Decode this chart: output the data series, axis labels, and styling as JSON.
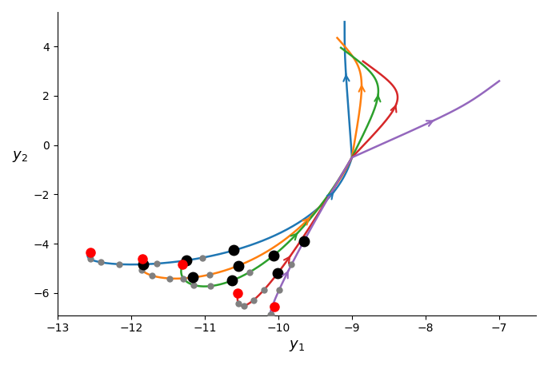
{
  "xlabel": "$y_1$",
  "ylabel": "$y_2$",
  "xlim": [
    -13.0,
    -6.5
  ],
  "ylim": [
    -6.9,
    5.4
  ],
  "curves": [
    {
      "color": "#1f77b4",
      "p0": [
        -12.55,
        -4.35
      ],
      "p1": [
        -13.0,
        -5.2
      ],
      "p2": [
        -9.5,
        -5.5
      ],
      "p3": [
        -9.0,
        -0.5
      ],
      "p4": [
        -9.0,
        -0.5
      ],
      "p5": [
        -9.1,
        3.5
      ],
      "p6": [
        -9.1,
        5.0
      ],
      "arrow_t1": 0.45,
      "arrow_t2": 0.72,
      "red_dot_t": 0.0,
      "black_dots_t": [
        0.18,
        0.24,
        0.3
      ],
      "gray_dots_t": [
        0.06,
        0.1,
        0.14,
        0.2,
        0.26
      ]
    },
    {
      "color": "#ff7f0e",
      "p0": [
        -11.85,
        -4.6
      ],
      "p1": [
        -12.2,
        -5.8
      ],
      "p2": [
        -10.0,
        -6.5
      ],
      "p3": [
        -9.0,
        -0.5
      ],
      "p4": [
        -9.0,
        -0.5
      ],
      "p5": [
        -8.8,
        3.0
      ],
      "p6": [
        -9.2,
        4.35
      ],
      "arrow_t1": 0.42,
      "arrow_t2": 0.72,
      "red_dot_t": 0.0,
      "black_dots_t": [
        0.22,
        0.3
      ],
      "gray_dots_t": [
        0.07,
        0.12,
        0.17,
        0.25
      ]
    },
    {
      "color": "#2ca02c",
      "p0": [
        -11.3,
        -4.85
      ],
      "p1": [
        -11.5,
        -6.2
      ],
      "p2": [
        -10.2,
        -6.8
      ],
      "p3": [
        -9.0,
        -0.5
      ],
      "p4": [
        -9.0,
        -0.5
      ],
      "p5": [
        -8.5,
        2.5
      ],
      "p6": [
        -9.15,
        3.95
      ],
      "arrow_t1": 0.4,
      "arrow_t2": 0.72,
      "red_dot_t": 0.0,
      "black_dots_t": [
        0.26,
        0.35
      ],
      "gray_dots_t": [
        0.08,
        0.14,
        0.2,
        0.3
      ]
    },
    {
      "color": "#d62728",
      "p0": [
        -10.55,
        -6.0
      ],
      "p1": [
        -10.6,
        -7.0
      ],
      "p2": [
        -10.3,
        -7.2
      ],
      "p3": [
        -9.0,
        -0.5
      ],
      "p4": [
        -9.0,
        -0.5
      ],
      "p5": [
        -8.2,
        2.0
      ],
      "p6": [
        -8.85,
        3.4
      ],
      "arrow_t1": 0.37,
      "arrow_t2": 0.72,
      "red_dot_t": 0.0,
      "black_dots_t": [
        0.33
      ],
      "gray_dots_t": [
        0.09,
        0.16,
        0.23,
        0.28
      ]
    },
    {
      "color": "#9467bd",
      "p0": [
        -10.05,
        -6.55
      ],
      "p1": [
        -10.1,
        -7.3
      ],
      "p2": [
        -10.4,
        -7.5
      ],
      "p3": [
        -9.0,
        -0.5
      ],
      "p4": [
        -9.0,
        -0.5
      ],
      "p5": [
        -7.5,
        1.5
      ],
      "p6": [
        -7.0,
        2.6
      ],
      "arrow_t1": 0.35,
      "arrow_t2": 0.68,
      "red_dot_t": 0.0,
      "black_dots_t": [
        0.4
      ],
      "gray_dots_t": [
        0.1,
        0.17,
        0.24,
        0.3,
        0.36
      ]
    }
  ]
}
